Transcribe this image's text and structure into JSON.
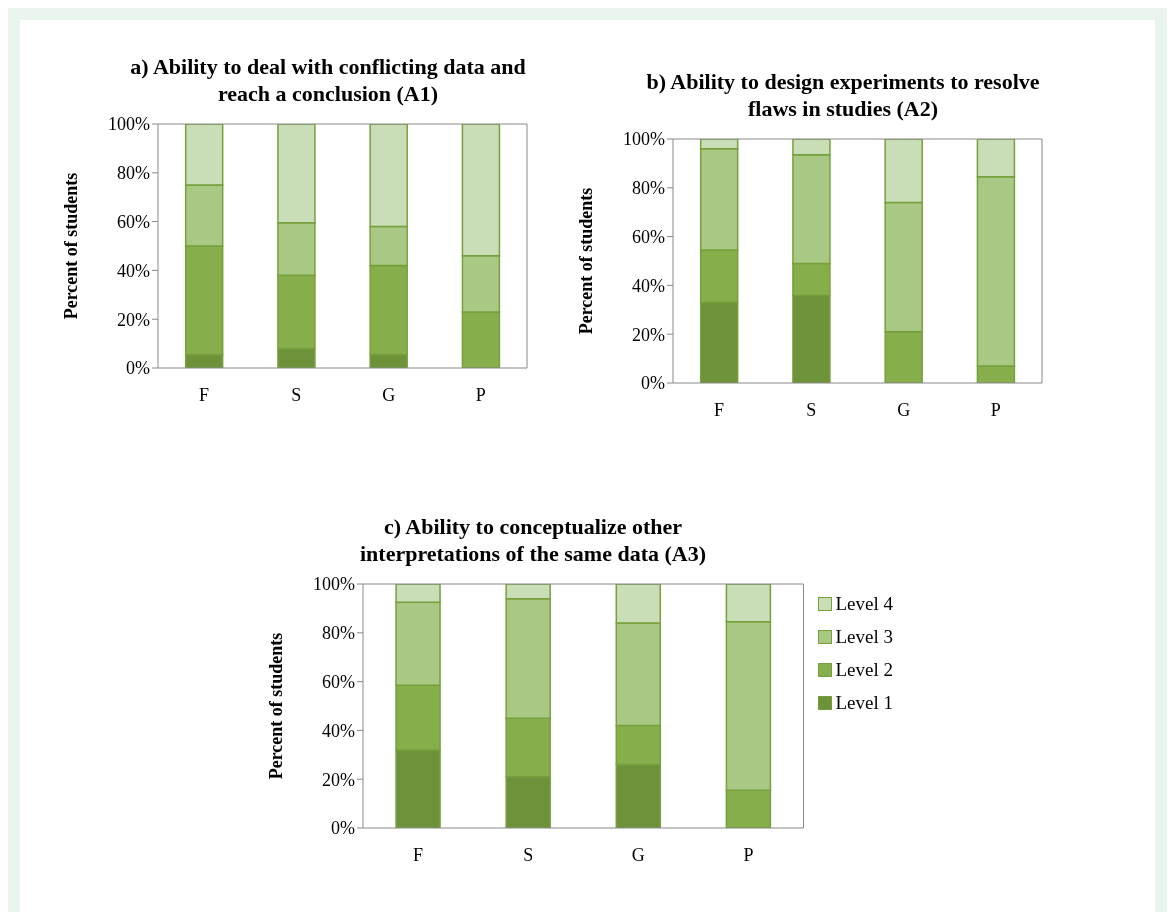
{
  "chart_data": [
    {
      "type": "bar",
      "title": "a) Ability to deal with conflicting data and reach a conclusion (A1)",
      "ylabel": "Percent of students",
      "categories": [
        "F",
        "S",
        "G",
        "P"
      ],
      "stacked": true,
      "ylim": [
        0,
        100
      ],
      "yticks": [
        {
          "value": 0,
          "label": "0%"
        },
        {
          "value": 20,
          "label": "20%"
        },
        {
          "value": 40,
          "label": "40%"
        },
        {
          "value": 60,
          "label": "60%"
        },
        {
          "value": 80,
          "label": "80%"
        },
        {
          "value": 100,
          "label": "100%"
        }
      ],
      "grid": false,
      "legend": false,
      "series": [
        {
          "color": "#6e9239",
          "values": [
            5.5,
            8,
            5.5,
            0
          ]
        },
        {
          "color": "#86ae4a",
          "values": [
            44.5,
            30,
            36.5,
            23
          ]
        },
        {
          "color": "#a8c884",
          "values": [
            25,
            21.5,
            16,
            23
          ]
        },
        {
          "color": "#c9ddb6",
          "values": [
            25,
            40.5,
            42,
            54
          ]
        }
      ]
    },
    {
      "type": "bar",
      "title": "b) Ability to design experiments to resolve flaws in studies (A2)",
      "ylabel": "Percent of students",
      "categories": [
        "F",
        "S",
        "G",
        "P"
      ],
      "stacked": true,
      "ylim": [
        0,
        100
      ],
      "yticks": [
        {
          "value": 0,
          "label": "0%"
        },
        {
          "value": 20,
          "label": "20%"
        },
        {
          "value": 40,
          "label": "40%"
        },
        {
          "value": 60,
          "label": "60%"
        },
        {
          "value": 80,
          "label": "80%"
        },
        {
          "value": 100,
          "label": "100%"
        }
      ],
      "grid": false,
      "legend": false,
      "series": [
        {
          "color": "#6e9239",
          "values": [
            33,
            36,
            0,
            0
          ]
        },
        {
          "color": "#86ae4a",
          "values": [
            21.5,
            13,
            21,
            7
          ]
        },
        {
          "color": "#a8c884",
          "values": [
            41.5,
            44.5,
            53,
            77.5
          ]
        },
        {
          "color": "#c9ddb6",
          "values": [
            4,
            6.5,
            26,
            15.5
          ]
        }
      ]
    },
    {
      "type": "bar",
      "title": "c) Ability to conceptualize other interpretations of the same data (A3)",
      "ylabel": "Percent of students",
      "categories": [
        "F",
        "S",
        "G",
        "P"
      ],
      "stacked": true,
      "ylim": [
        0,
        100
      ],
      "yticks": [
        {
          "value": 0,
          "label": "0%"
        },
        {
          "value": 20,
          "label": "20%"
        },
        {
          "value": 40,
          "label": "40%"
        },
        {
          "value": 60,
          "label": "60%"
        },
        {
          "value": 80,
          "label": "80%"
        },
        {
          "value": 100,
          "label": "100%"
        }
      ],
      "grid": false,
      "legend": "right",
      "series": [
        {
          "name": "Level 1",
          "color": "#6e9239",
          "values": [
            32,
            21,
            26,
            0
          ]
        },
        {
          "name": "Level 2",
          "color": "#86ae4a",
          "values": [
            26.5,
            24,
            16,
            15.5
          ]
        },
        {
          "name": "Level 3",
          "color": "#a8c884",
          "values": [
            34,
            49,
            42,
            69
          ]
        },
        {
          "name": "Level 4",
          "color": "#c9ddb6",
          "values": [
            7.5,
            6,
            16,
            15.5
          ]
        }
      ]
    }
  ]
}
